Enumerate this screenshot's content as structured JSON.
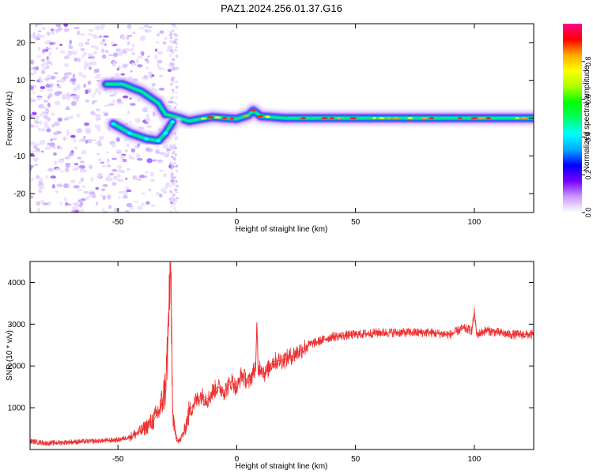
{
  "title": "PAZ1.2024.256.01.37.G16",
  "chart_data": [
    {
      "type": "heatmap",
      "xlabel": "Height of straight line (km)",
      "ylabel": "Frequency (Hz)",
      "xlim": [
        -87,
        125
      ],
      "ylim": [
        -25,
        25
      ],
      "x_ticks": [
        -50,
        0,
        50,
        100
      ],
      "y_ticks": [
        -20,
        -10,
        0,
        10,
        20
      ],
      "colorbar": {
        "label": "Normalized spectral amplitude",
        "range": [
          0,
          1
        ],
        "ticks": [
          "0.0",
          "0.2",
          "0.4",
          "0.6",
          "0.8"
        ],
        "colors": [
          "#ffffff",
          "#cc99ff",
          "#7700ff",
          "#0000ff",
          "#00aaff",
          "#00ffff",
          "#00ff66",
          "#00ff00",
          "#aaff00",
          "#ffff00",
          "#ffaa00",
          "#ff0000",
          "#ff0088"
        ]
      },
      "ridges": [
        {
          "name": "",
          "x": [
            -55,
            -48,
            -40,
            -33,
            -30,
            -27,
            -24,
            -20,
            -15,
            -10,
            -5,
            0,
            5,
            7,
            10,
            20,
            50,
            100,
            125
          ],
          "y": [
            9,
            9,
            7,
            4,
            1,
            0.5,
            0,
            -0.8,
            -0.2,
            0.3,
            0,
            -0.2,
            0.8,
            2,
            0.5,
            0,
            0,
            0,
            0
          ]
        },
        {
          "name": "",
          "x": [
            -52,
            -45,
            -38,
            -33,
            -30,
            -27
          ],
          "y": [
            -1.5,
            -4,
            -5.5,
            -6,
            -4,
            -1
          ]
        }
      ]
    },
    {
      "type": "line",
      "xlabel": "Height of straight line (km)",
      "ylabel": "SNR (10 * v/v)",
      "xlim": [
        -87,
        125
      ],
      "ylim": [
        0,
        4500
      ],
      "x_ticks": [
        -50,
        0,
        50,
        100
      ],
      "y_ticks": [
        1000,
        2000,
        3000,
        4000
      ],
      "series": [
        {
          "name": "",
          "color": "#ee3030",
          "x": [
            -87,
            -80,
            -70,
            -60,
            -50,
            -45,
            -40,
            -35,
            -32,
            -30,
            -29,
            -28,
            -27.5,
            -27,
            -26,
            -25,
            -24,
            -22,
            -20,
            -18,
            -15,
            -12,
            -10,
            -8,
            -5,
            -2,
            0,
            2,
            5,
            8,
            8.5,
            9,
            10,
            12,
            15,
            20,
            25,
            30,
            35,
            40,
            50,
            60,
            70,
            80,
            90,
            95,
            99,
            100,
            101,
            105,
            110,
            115,
            120,
            125
          ],
          "y": [
            200,
            150,
            180,
            200,
            230,
            300,
            450,
            700,
            1000,
            1500,
            2500,
            4450,
            3400,
            900,
            400,
            250,
            200,
            450,
            900,
            1100,
            1300,
            1200,
            1400,
            1500,
            1400,
            1650,
            1450,
            1800,
            1600,
            2000,
            3000,
            1900,
            2000,
            1800,
            2100,
            2150,
            2300,
            2500,
            2600,
            2700,
            2750,
            2800,
            2800,
            2800,
            2750,
            2900,
            2850,
            3300,
            2750,
            2850,
            2800,
            2750,
            2750,
            2750
          ]
        }
      ]
    }
  ]
}
